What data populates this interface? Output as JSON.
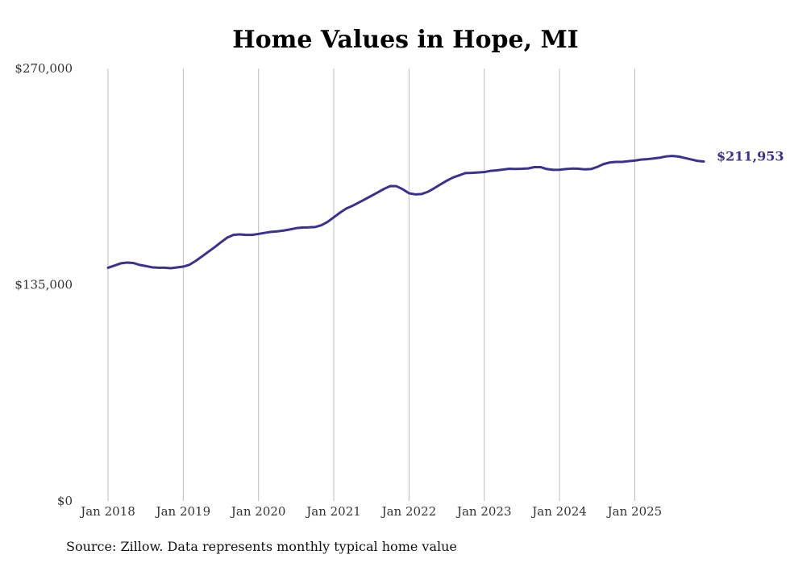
{
  "chart_data": {
    "type": "line",
    "title": "Home Values in Hope, MI",
    "xlabel": "",
    "ylabel": "",
    "ylim": [
      0,
      270000
    ],
    "y_ticks": [
      {
        "value": 0,
        "label": "$0"
      },
      {
        "value": 135000,
        "label": "$135,000"
      },
      {
        "value": 270000,
        "label": "$270,000"
      }
    ],
    "x_ticks": [
      {
        "label": "Jan 2018",
        "index": 0
      },
      {
        "label": "Jan 2019",
        "index": 12
      },
      {
        "label": "Jan 2020",
        "index": 24
      },
      {
        "label": "Jan 2021",
        "index": 36
      },
      {
        "label": "Jan 2022",
        "index": 48
      },
      {
        "label": "Jan 2023",
        "index": 60
      },
      {
        "label": "Jan 2024",
        "index": 72
      },
      {
        "label": "Jan 2025",
        "index": 84
      }
    ],
    "grid": "vertical",
    "line_color": "#3b3290",
    "start_month": "Jan 2018",
    "values": [
      145600,
      146900,
      148300,
      148800,
      148600,
      147400,
      146700,
      145900,
      145600,
      145600,
      145300,
      145800,
      146300,
      147500,
      149900,
      152700,
      155600,
      158400,
      161500,
      164400,
      166100,
      166400,
      166100,
      166100,
      166700,
      167400,
      168000,
      168300,
      168800,
      169500,
      170300,
      170700,
      170800,
      171000,
      172100,
      174200,
      177100,
      180000,
      182600,
      184300,
      186300,
      188400,
      190500,
      192600,
      194800,
      196600,
      196500,
      194600,
      192100,
      191400,
      191600,
      193000,
      195200,
      197600,
      199900,
      201900,
      203300,
      204700,
      204800,
      205100,
      205300,
      206100,
      206400,
      206900,
      207400,
      207300,
      207400,
      207600,
      208400,
      208400,
      207200,
      206700,
      206800,
      207200,
      207500,
      207400,
      207000,
      207200,
      208500,
      210300,
      211300,
      211700,
      211700,
      212100,
      212500,
      213100,
      213400,
      213800,
      214300,
      215100,
      215400,
      215000,
      214100,
      213200,
      212300,
      211953
    ],
    "end_label": "$211,953"
  },
  "source": "Source: Zillow. Data represents monthly typical home value"
}
